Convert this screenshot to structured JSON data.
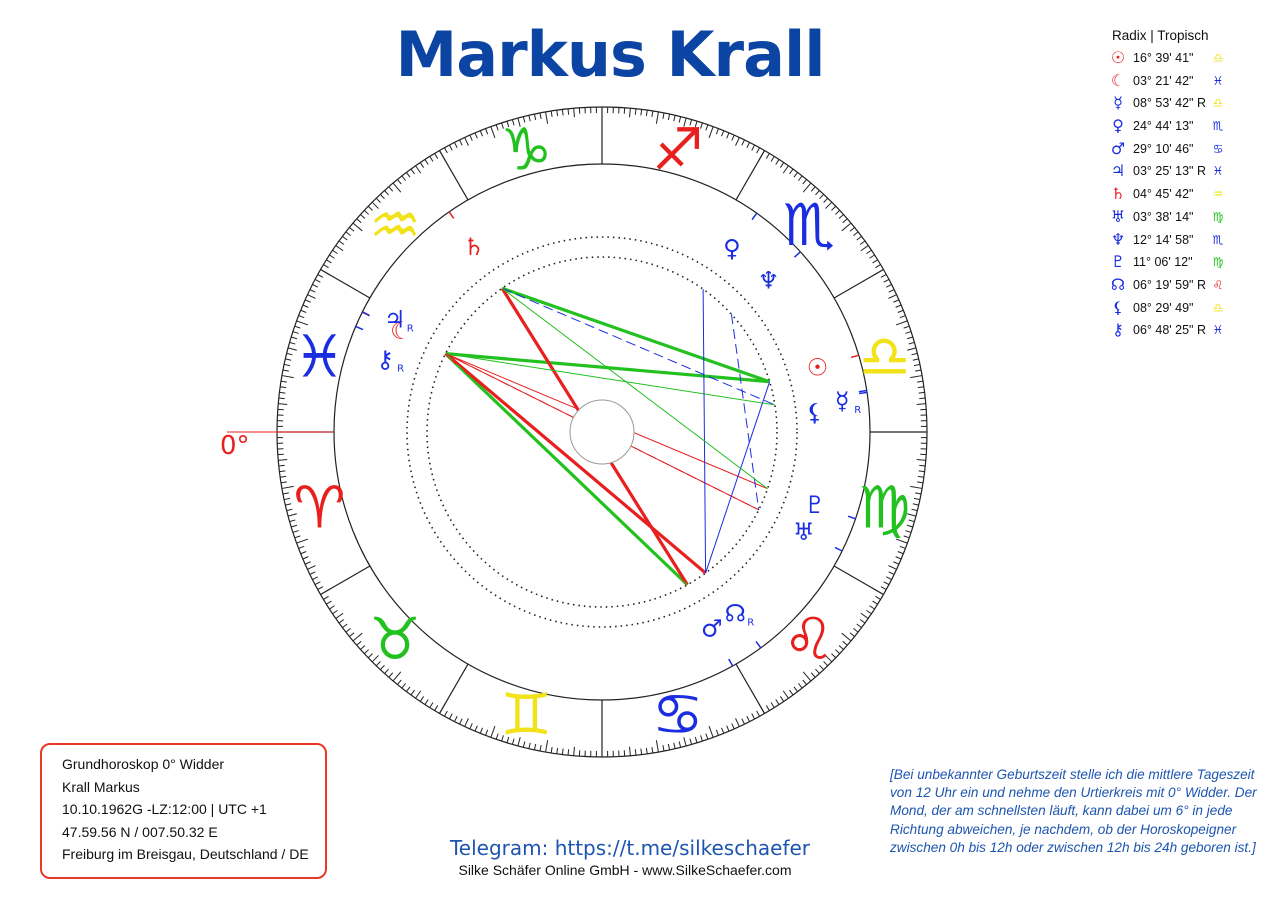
{
  "title": "Markus Krall",
  "legend": {
    "header": "Radix | Tropisch",
    "rows": [
      {
        "planet": "sun-icon",
        "glyph": "☉",
        "color": "#e81f1f",
        "position": "16° 39' 41\"",
        "sign": "♎",
        "sign_color": "#f2e21a"
      },
      {
        "planet": "moon-icon",
        "glyph": "☾",
        "color": "#e81f1f",
        "position": "03° 21' 42\"",
        "sign": "♓",
        "sign_color": "#1a2ee0"
      },
      {
        "planet": "mercury-icon",
        "glyph": "☿",
        "color": "#1a2ee0",
        "position": "08° 53' 42\" R",
        "sign": "♎",
        "sign_color": "#f2e21a"
      },
      {
        "planet": "venus-icon",
        "glyph": "♀",
        "color": "#1a2ee0",
        "position": "24° 44' 13\"",
        "sign": "♏",
        "sign_color": "#1a2ee0"
      },
      {
        "planet": "mars-icon",
        "glyph": "♂",
        "color": "#1a2ee0",
        "position": "29° 10' 46\"",
        "sign": "♋",
        "sign_color": "#1a2ee0"
      },
      {
        "planet": "jupiter-icon",
        "glyph": "♃",
        "color": "#1a2ee0",
        "position": "03° 25' 13\" R",
        "sign": "♓",
        "sign_color": "#1a2ee0"
      },
      {
        "planet": "saturn-icon",
        "glyph": "♄",
        "color": "#e81f1f",
        "position": "04° 45' 42\"",
        "sign": "♒",
        "sign_color": "#f2e21a"
      },
      {
        "planet": "uranus-icon",
        "glyph": "♅",
        "color": "#1a2ee0",
        "position": "03° 38' 14\"",
        "sign": "♍",
        "sign_color": "#22c11f"
      },
      {
        "planet": "neptune-icon",
        "glyph": "♆",
        "color": "#1a2ee0",
        "position": "12° 14' 58\"",
        "sign": "♏",
        "sign_color": "#1a2ee0"
      },
      {
        "planet": "pluto-icon",
        "glyph": "♇",
        "color": "#1a2ee0",
        "position": "11° 06' 12\"",
        "sign": "♍",
        "sign_color": "#22c11f"
      },
      {
        "planet": "node-icon",
        "glyph": "☊",
        "color": "#1a2ee0",
        "position": "06° 19' 59\" R",
        "sign": "♌",
        "sign_color": "#e81f1f"
      },
      {
        "planet": "lilith-icon",
        "glyph": "⚸",
        "color": "#1a2ee0",
        "position": "08° 29' 49\"",
        "sign": "♎",
        "sign_color": "#f2e21a"
      },
      {
        "planet": "chiron-icon",
        "glyph": "⚷",
        "color": "#1a2ee0",
        "position": "06° 48' 25\" R",
        "sign": "♓",
        "sign_color": "#1a2ee0"
      }
    ]
  },
  "wheel": {
    "ascendant_label": "0°",
    "signs": [
      {
        "name": "aries",
        "glyph": "♈",
        "color": "#e81f1f",
        "start": 0
      },
      {
        "name": "taurus",
        "glyph": "♉",
        "color": "#22c11f",
        "start": 30
      },
      {
        "name": "gemini",
        "glyph": "♊",
        "color": "#f2e21a",
        "start": 60
      },
      {
        "name": "cancer",
        "glyph": "♋",
        "color": "#1a2ee0",
        "start": 90
      },
      {
        "name": "leo",
        "glyph": "♌",
        "color": "#e81f1f",
        "start": 120
      },
      {
        "name": "virgo",
        "glyph": "♍",
        "color": "#22c11f",
        "start": 150
      },
      {
        "name": "libra",
        "glyph": "♎",
        "color": "#f2e21a",
        "start": 180
      },
      {
        "name": "scorpio",
        "glyph": "♏",
        "color": "#1a2ee0",
        "start": 210
      },
      {
        "name": "sagittarius",
        "glyph": "♐",
        "color": "#e81f1f",
        "start": 240
      },
      {
        "name": "capricorn",
        "glyph": "♑",
        "color": "#22c11f",
        "start": 270
      },
      {
        "name": "aquarius",
        "glyph": "♒",
        "color": "#f2e21a",
        "start": 300
      },
      {
        "name": "pisces",
        "glyph": "♓",
        "color": "#1a2ee0",
        "start": 330
      }
    ],
    "planets": [
      {
        "name": "sun",
        "glyph": "☉",
        "color": "#e81f1f",
        "longitude": 196.66,
        "retro": false
      },
      {
        "name": "moon",
        "glyph": "☾",
        "color": "#e81f1f",
        "longitude": 333.36,
        "retro": false
      },
      {
        "name": "mercury",
        "glyph": "☿",
        "color": "#1a2ee0",
        "longitude": 188.9,
        "retro": true
      },
      {
        "name": "venus",
        "glyph": "♀",
        "color": "#1a2ee0",
        "longitude": 234.74,
        "retro": false
      },
      {
        "name": "mars",
        "glyph": "♂",
        "color": "#1a2ee0",
        "longitude": 119.18,
        "retro": false
      },
      {
        "name": "jupiter",
        "glyph": "♃",
        "color": "#1a2ee0",
        "longitude": 333.42,
        "retro": true
      },
      {
        "name": "saturn",
        "glyph": "♄",
        "color": "#e81f1f",
        "longitude": 304.76,
        "retro": false
      },
      {
        "name": "uranus",
        "glyph": "♅",
        "color": "#1a2ee0",
        "longitude": 153.64,
        "retro": false
      },
      {
        "name": "neptune",
        "glyph": "♆",
        "color": "#1a2ee0",
        "longitude": 222.25,
        "retro": false
      },
      {
        "name": "pluto",
        "glyph": "♇",
        "color": "#1a2ee0",
        "longitude": 161.1,
        "retro": false
      },
      {
        "name": "node",
        "glyph": "☊",
        "color": "#1a2ee0",
        "longitude": 126.33,
        "retro": true
      },
      {
        "name": "lilith",
        "glyph": "⚸",
        "color": "#1a2ee0",
        "longitude": 188.5,
        "retro": false
      },
      {
        "name": "chiron",
        "glyph": "⚷",
        "color": "#1a2ee0",
        "longitude": 336.81,
        "retro": true
      }
    ],
    "retro_mark": "R",
    "aspects": [
      {
        "from": 333.4,
        "to": 196.7,
        "color": "#22c11f",
        "style": "solid",
        "weight": "heavy"
      },
      {
        "from": 333.4,
        "to": 119.2,
        "color": "#22c11f",
        "style": "solid",
        "weight": "heavy"
      },
      {
        "from": 333.4,
        "to": 126.3,
        "color": "#e81f1f",
        "style": "solid",
        "weight": "heavy"
      },
      {
        "from": 304.8,
        "to": 196.7,
        "color": "#22c11f",
        "style": "solid",
        "weight": "heavy"
      },
      {
        "from": 304.8,
        "to": 119.2,
        "color": "#e81f1f",
        "style": "solid",
        "weight": "heavy"
      },
      {
        "from": 304.8,
        "to": 188.9,
        "color": "#1a2ee0",
        "style": "dashed",
        "weight": "light"
      },
      {
        "from": 333.4,
        "to": 153.6,
        "color": "#e81f1f",
        "style": "solid",
        "weight": "light"
      },
      {
        "from": 333.4,
        "to": 161.1,
        "color": "#e81f1f",
        "style": "solid",
        "weight": "light"
      },
      {
        "from": 333.4,
        "to": 188.9,
        "color": "#22c11f",
        "style": "solid",
        "weight": "light"
      },
      {
        "from": 333.4,
        "to": 119.2,
        "color": "#22c11f",
        "style": "dashed",
        "weight": "light"
      },
      {
        "from": 333.4,
        "to": 153.6,
        "color": "#e81f1f",
        "style": "dashed",
        "weight": "light"
      },
      {
        "from": 234.7,
        "to": 126.3,
        "color": "#1a2ee0",
        "style": "solid",
        "weight": "light"
      },
      {
        "from": 222.3,
        "to": 153.6,
        "color": "#1a2ee0",
        "style": "dashed",
        "weight": "light"
      },
      {
        "from": 196.7,
        "to": 126.3,
        "color": "#1a2ee0",
        "style": "solid",
        "weight": "light"
      },
      {
        "from": 304.8,
        "to": 161.1,
        "color": "#22c11f",
        "style": "solid",
        "weight": "light"
      }
    ]
  },
  "info": {
    "line1": "Grundhoroskop 0° Widder",
    "line2": "Krall Markus",
    "line3": "10.10.1962G -LZ:12:00 | UTC +1",
    "line4": "47.59.56 N / 007.50.32 E",
    "line5": "Freiburg im Breisgau, Deutschland / DE"
  },
  "telegram": "Telegram: https://t.me/silkeschaefer",
  "footer": "Silke Schäfer Online GmbH - www.SilkeSchaefer.com",
  "note": "[Bei unbekannter Geburtszeit stelle ich die mittlere Tageszeit von 12 Uhr ein und nehme den Urtierkreis mit 0° Widder. Der Mond, der am schnellsten läuft, kann dabei um 6° in jede Richtung abweichen, je nachdem, ob der Horoskopeigner zwischen 0h bis 12h oder zwischen 12h bis 24h geboren ist.]"
}
